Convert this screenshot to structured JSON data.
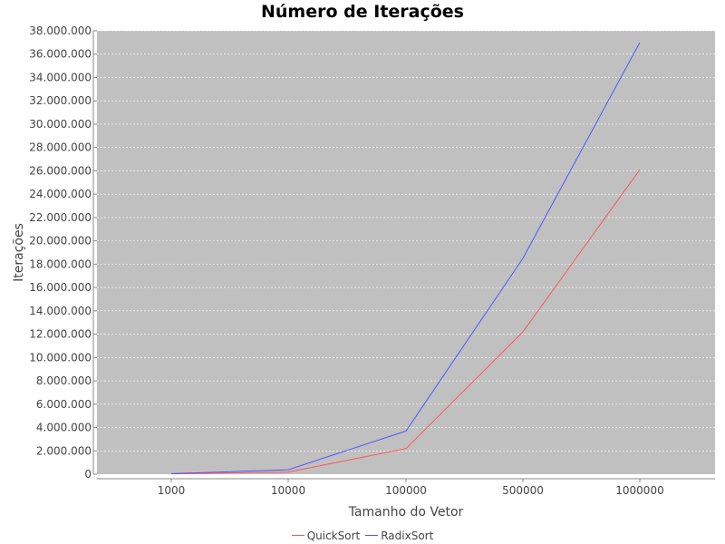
{
  "chart_data": {
    "type": "line",
    "title": "Número de Iterações",
    "xlabel": "Tamanho do Vetor",
    "ylabel": "Iterações",
    "categories": [
      "1000",
      "10000",
      "100000",
      "500000",
      "1000000"
    ],
    "series": [
      {
        "name": "QuickSort",
        "color": "#ff5555",
        "values": [
          30000,
          180000,
          2200000,
          12200000,
          26100000
        ]
      },
      {
        "name": "RadixSort",
        "color": "#5555ff",
        "values": [
          50000,
          380000,
          3700000,
          18500000,
          37000000
        ]
      }
    ],
    "ylim": [
      0,
      38000000
    ],
    "yticks": [
      "0",
      "2.000.000",
      "4.000.000",
      "6.000.000",
      "8.000.000",
      "10.000.000",
      "12.000.000",
      "14.000.000",
      "16.000.000",
      "18.000.000",
      "20.000.000",
      "22.000.000",
      "24.000.000",
      "26.000.000",
      "28.000.000",
      "30.000.000",
      "32.000.000",
      "34.000.000",
      "36.000.000",
      "38.000.000"
    ],
    "ytick_values": [
      0,
      2000000,
      4000000,
      6000000,
      8000000,
      10000000,
      12000000,
      14000000,
      16000000,
      18000000,
      20000000,
      22000000,
      24000000,
      26000000,
      28000000,
      30000000,
      32000000,
      34000000,
      36000000,
      38000000
    ],
    "grid": true,
    "legend": "bottom-center",
    "plot_background": "#c0c0c0",
    "grid_color": "#ffffff"
  }
}
